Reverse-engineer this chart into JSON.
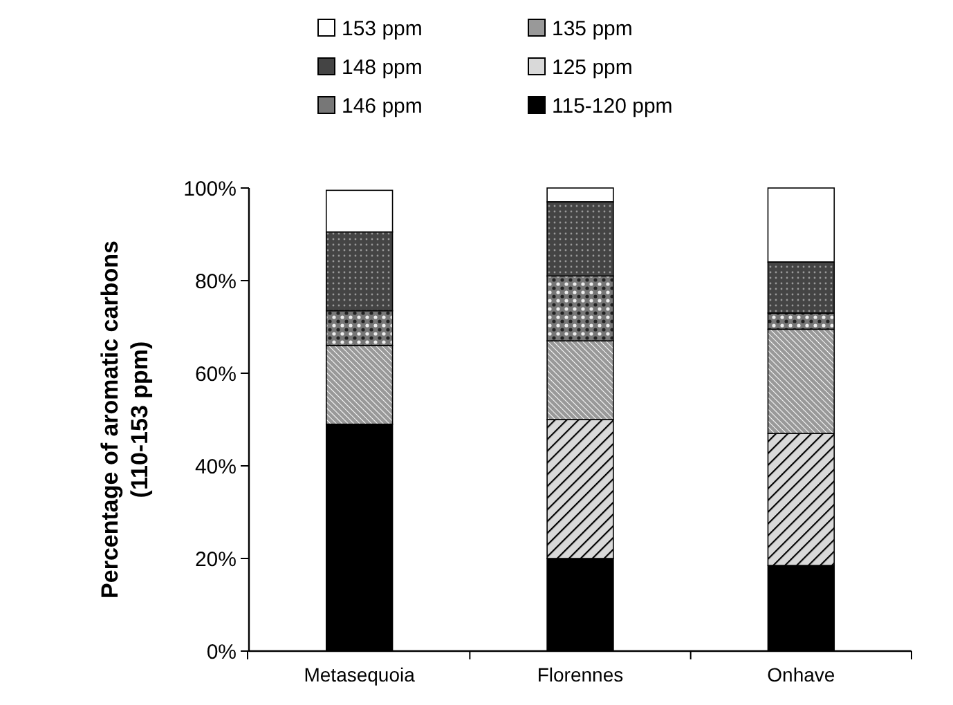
{
  "chart_data": {
    "type": "bar",
    "stacked": true,
    "ylabel": "Percentage of aromatic carbons\n(110-153 ppm)",
    "categories": [
      "Metasequoia",
      "Florennes",
      "Onhave"
    ],
    "ylim": [
      0,
      100
    ],
    "yticks": [
      {
        "value": 0,
        "label": "0%"
      },
      {
        "value": 20,
        "label": "20%"
      },
      {
        "value": 40,
        "label": "40%"
      },
      {
        "value": 60,
        "label": "60%"
      },
      {
        "value": 80,
        "label": "80%"
      },
      {
        "value": 100,
        "label": "100%"
      }
    ],
    "legend": "top",
    "grid": false,
    "series": [
      {
        "name": "115-120 ppm",
        "color": "#000000",
        "values": [
          49,
          20,
          18.5
        ]
      },
      {
        "name": "125 ppm",
        "color": "#d9d9d9",
        "values": [
          0,
          30,
          28.5
        ]
      },
      {
        "name": "135 ppm",
        "color": "#999999",
        "values": [
          17,
          17,
          22.5
        ]
      },
      {
        "name": "146 ppm",
        "color": "#777777",
        "values": [
          7.5,
          14,
          3.5
        ]
      },
      {
        "name": "148 ppm",
        "color": "#444444",
        "values": [
          17,
          16,
          11
        ]
      },
      {
        "name": "153 ppm",
        "color": "#ffffff",
        "values": [
          9,
          3,
          16
        ]
      }
    ]
  }
}
